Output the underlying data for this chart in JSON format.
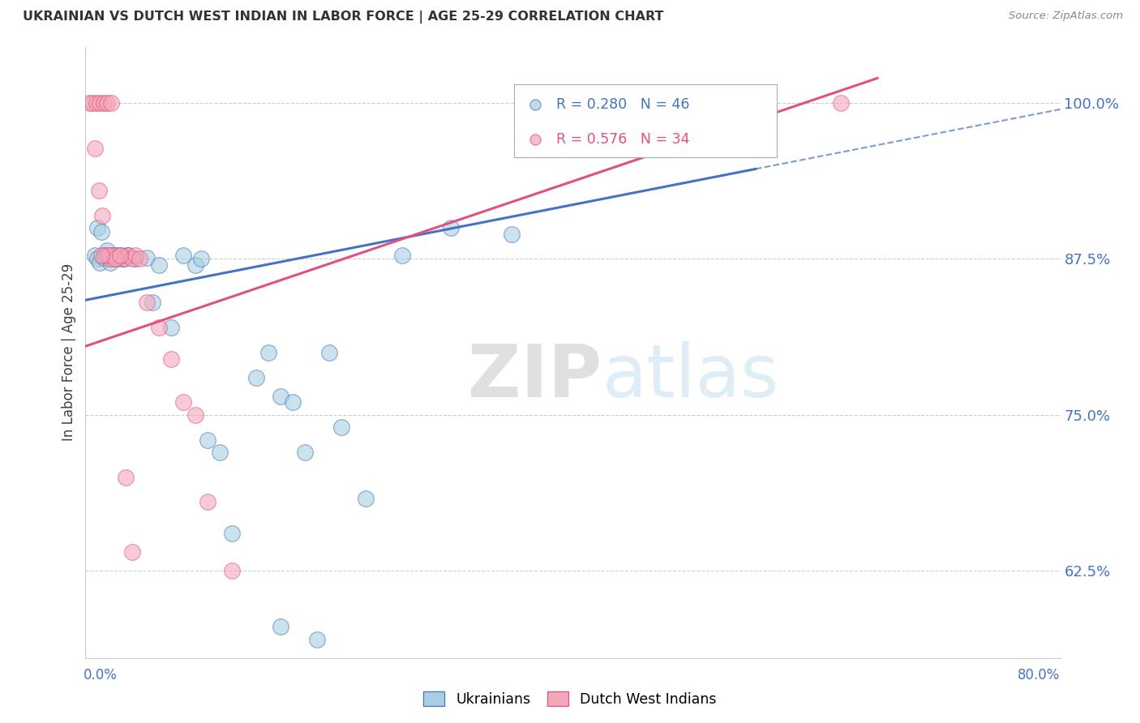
{
  "title": "UKRAINIAN VS DUTCH WEST INDIAN IN LABOR FORCE | AGE 25-29 CORRELATION CHART",
  "source": "Source: ZipAtlas.com",
  "ylabel": "In Labor Force | Age 25-29",
  "yticks": [
    0.625,
    0.75,
    0.875,
    1.0
  ],
  "ytick_labels": [
    "62.5%",
    "75.0%",
    "87.5%",
    "100.0%"
  ],
  "xmin": 0.0,
  "xmax": 0.8,
  "ymin": 0.555,
  "ymax": 1.045,
  "legend_blue_label": "Ukrainians",
  "legend_pink_label": "Dutch West Indians",
  "R_blue": 0.28,
  "N_blue": 46,
  "R_pink": 0.576,
  "N_pink": 34,
  "blue_fill": "#a8cfe0",
  "blue_edge": "#4472c4",
  "pink_fill": "#f4a7b9",
  "pink_edge": "#e05080",
  "trend_blue_color": "#4472c4",
  "trend_pink_color": "#e05080",
  "watermark_color": "#d5e8f5",
  "blue_trend_x0": 0.0,
  "blue_trend_y0": 0.842,
  "blue_trend_x1": 0.8,
  "blue_trend_y1": 0.995,
  "blue_trend_dashed_x1": 0.8,
  "blue_trend_dashed_y1": 0.995,
  "pink_trend_x0": 0.0,
  "pink_trend_y0": 0.805,
  "pink_trend_x1": 0.65,
  "pink_trend_y1": 1.02,
  "blue_x": [
    0.008,
    0.01,
    0.012,
    0.015,
    0.018,
    0.02,
    0.022,
    0.025,
    0.01,
    0.013,
    0.016,
    0.019,
    0.022,
    0.025,
    0.028,
    0.031,
    0.034,
    0.05,
    0.055,
    0.06,
    0.07,
    0.09,
    0.1,
    0.14,
    0.15,
    0.16,
    0.18,
    0.2,
    0.23,
    0.26,
    0.015,
    0.02,
    0.025,
    0.03,
    0.035,
    0.04,
    0.16,
    0.19,
    0.08,
    0.095,
    0.11,
    0.3,
    0.35,
    0.12,
    0.17,
    0.21
  ],
  "blue_y": [
    0.878,
    0.875,
    0.872,
    0.878,
    0.882,
    0.878,
    0.875,
    0.878,
    0.9,
    0.897,
    0.878,
    0.875,
    0.878,
    0.875,
    0.878,
    0.875,
    0.878,
    0.876,
    0.84,
    0.87,
    0.82,
    0.87,
    0.73,
    0.78,
    0.8,
    0.765,
    0.72,
    0.8,
    0.683,
    0.878,
    0.876,
    0.872,
    0.878,
    0.875,
    0.878,
    0.875,
    0.58,
    0.57,
    0.878,
    0.875,
    0.72,
    0.9,
    0.895,
    0.655,
    0.76,
    0.74
  ],
  "pink_x": [
    0.003,
    0.006,
    0.009,
    0.012,
    0.015,
    0.018,
    0.021,
    0.008,
    0.011,
    0.014,
    0.017,
    0.02,
    0.023,
    0.026,
    0.029,
    0.032,
    0.035,
    0.038,
    0.041,
    0.044,
    0.05,
    0.06,
    0.07,
    0.08,
    0.09,
    0.019,
    0.024,
    0.028,
    0.033,
    0.038,
    0.1,
    0.12,
    0.62,
    0.013
  ],
  "pink_y": [
    1.0,
    1.0,
    1.0,
    1.0,
    1.0,
    1.0,
    1.0,
    0.964,
    0.93,
    0.91,
    0.878,
    0.875,
    0.878,
    0.875,
    0.878,
    0.875,
    0.878,
    0.875,
    0.878,
    0.875,
    0.84,
    0.82,
    0.795,
    0.76,
    0.75,
    0.878,
    0.875,
    0.878,
    0.7,
    0.64,
    0.68,
    0.625,
    1.0,
    0.878
  ]
}
